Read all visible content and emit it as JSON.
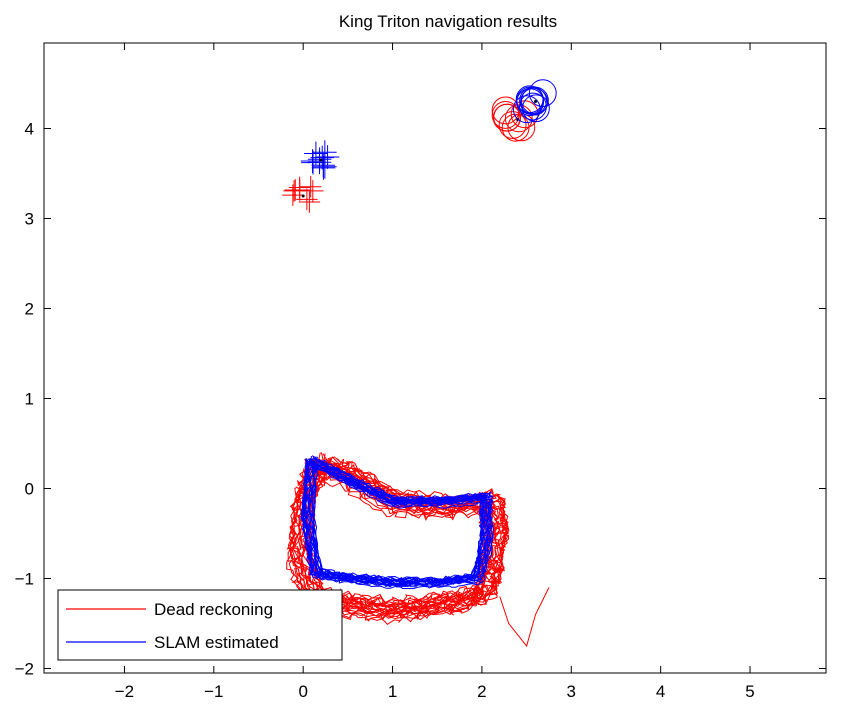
{
  "chart_data": {
    "type": "line",
    "title": "King Triton navigation results",
    "xlabel": "",
    "ylabel": "",
    "xlim": [
      -2.9,
      5.85
    ],
    "ylim": [
      -2.05,
      4.95
    ],
    "xticks": [
      -2,
      -1,
      0,
      1,
      2,
      3,
      4,
      5
    ],
    "yticks": [
      -2,
      -1,
      0,
      1,
      2,
      3,
      4
    ],
    "xtick_labels": [
      "−2",
      "−1",
      "0",
      "1",
      "2",
      "3",
      "4",
      "5"
    ],
    "ytick_labels": [
      "−2",
      "−1",
      "0",
      "1",
      "2",
      "3",
      "4"
    ],
    "grid": false,
    "legend_position": "bottom-left",
    "colors": {
      "dead_reckoning": "#ff0000",
      "slam": "#0000ff"
    },
    "series": [
      {
        "name": "Dead reckoning",
        "color": "#ff0000",
        "approximate_path": {
          "x": [
            0.15,
            0.5,
            1.0,
            1.6,
            2.1,
            2.15,
            2.1,
            2.0,
            1.5,
            1.0,
            0.5,
            0.1,
            -0.05,
            0.0,
            0.15
          ],
          "y": [
            0.25,
            0.15,
            -0.15,
            -0.2,
            -0.15,
            -0.5,
            -0.9,
            -1.2,
            -1.3,
            -1.35,
            -1.3,
            -1.2,
            -0.7,
            -0.1,
            0.25
          ]
        },
        "laps": 22,
        "spread": 0.25,
        "tail": {
          "x": [
            2.2,
            2.3,
            2.5,
            2.6,
            2.75
          ],
          "y": [
            -1.2,
            -1.5,
            -1.75,
            -1.4,
            -1.1
          ]
        }
      },
      {
        "name": "SLAM estimated",
        "color": "#0000ff",
        "approximate_path": {
          "x": [
            0.1,
            0.5,
            1.0,
            1.6,
            2.05,
            2.05,
            1.95,
            1.5,
            1.0,
            0.5,
            0.15,
            0.05,
            0.1
          ],
          "y": [
            0.3,
            0.1,
            -0.15,
            -0.15,
            -0.1,
            -0.6,
            -1.0,
            -1.05,
            -1.05,
            -1.0,
            -0.95,
            -0.3,
            0.3
          ]
        },
        "laps": 20,
        "spread": 0.12
      }
    ],
    "landmarks": [
      {
        "label": "",
        "marker": "cross",
        "series": "Dead reckoning",
        "center": [
          0.0,
          3.25
        ],
        "count": 9,
        "spread": 0.12,
        "size": 0.2
      },
      {
        "label": "",
        "marker": "cross",
        "series": "SLAM estimated",
        "center": [
          0.2,
          3.65
        ],
        "count": 11,
        "spread": 0.1,
        "size": 0.22
      },
      {
        "label": "",
        "marker": "circle",
        "series": "Dead reckoning",
        "center": [
          2.4,
          4.1
        ],
        "count": 9,
        "spread": 0.15,
        "radius": 0.15
      },
      {
        "label": "",
        "marker": "circle",
        "series": "SLAM estimated",
        "center": [
          2.6,
          4.3
        ],
        "count": 10,
        "spread": 0.1,
        "radius": 0.15
      }
    ],
    "legend": [
      {
        "label": "Dead reckoning",
        "color": "#ff0000"
      },
      {
        "label": "SLAM estimated",
        "color": "#0000ff"
      }
    ]
  }
}
